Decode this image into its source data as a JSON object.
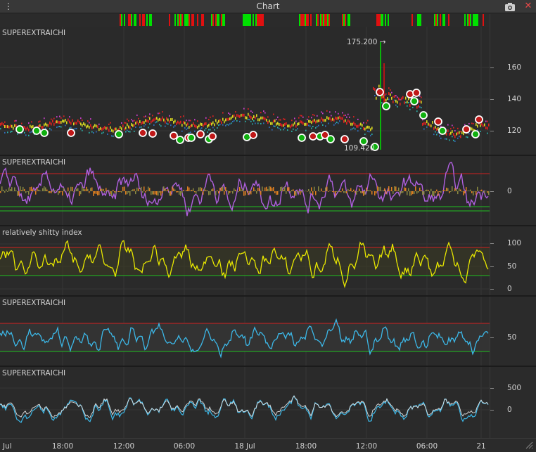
{
  "window": {
    "title": "Chart"
  },
  "icons": {
    "menu": "vertical-dots-icon",
    "camera": "camera-icon",
    "close": "close-x-icon"
  },
  "colors": {
    "up": "#00e000",
    "down": "#e01010",
    "price_trend_up": "#dddd22",
    "oscillator": "#b060e0",
    "rsi": "#e8e800",
    "cyan_series": "#3cb8e8",
    "upper_band": "#d02020",
    "lower_band": "#20c020",
    "marker_white": "#ffffff"
  },
  "panes": {
    "price": {
      "label": "SUPEREXTRAICHI",
      "high_tag": "175.200",
      "low_tag": "109.420",
      "y_ticks": [
        "160",
        "140",
        "120"
      ]
    },
    "oscillator": {
      "label": "SUPEREXTRAICHI",
      "y_ticks": [
        "0"
      ]
    },
    "rsi": {
      "label": "relatively shitty index",
      "y_ticks": [
        "100",
        "50",
        "0"
      ]
    },
    "pane4": {
      "label": "SUPEREXTRAICHI",
      "y_ticks": [
        "50"
      ]
    },
    "pane5": {
      "label": "SUPEREXTRAICHI",
      "y_ticks": [
        "500",
        "0"
      ]
    }
  },
  "x_axis": {
    "labels": [
      "Jul",
      "18:00",
      "12:00",
      "06:00",
      "18 Jul",
      "18:00",
      "12:00",
      "06:00",
      "21"
    ]
  }
}
